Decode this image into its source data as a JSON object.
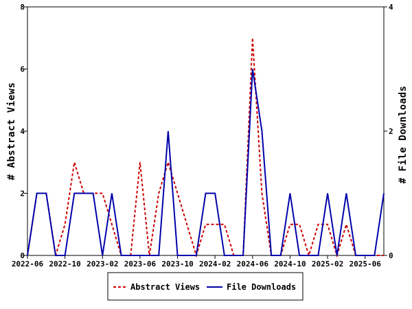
{
  "chart_data": {
    "type": "line",
    "x_ticks": [
      "2022-06",
      "2022-10",
      "2023-02",
      "2023-06",
      "2023-10",
      "2024-02",
      "2024-06",
      "2024-10",
      "2025-02",
      "2025-06"
    ],
    "x_start": "2022-06",
    "x_end": "2025-08",
    "left_axis": {
      "label": "# Abstract Views",
      "ylim": [
        0,
        8
      ],
      "ticks": [
        "0",
        "2",
        "4",
        "6",
        "8"
      ]
    },
    "right_axis": {
      "label": "# File Downloads",
      "ylim": [
        0,
        4
      ],
      "ticks": [
        "0",
        "2",
        "4"
      ]
    },
    "legend_position": "bottom-center",
    "series": [
      {
        "name": "Abstract Views",
        "axis": "left",
        "color": "#cc0000",
        "style": "dashed",
        "x": [
          "2022-06",
          "2022-07",
          "2022-08",
          "2022-09",
          "2022-10",
          "2022-11",
          "2022-12",
          "2023-01",
          "2023-02",
          "2023-03",
          "2023-04",
          "2023-05",
          "2023-06",
          "2023-07",
          "2023-08",
          "2023-09",
          "2023-10",
          "2023-11",
          "2023-12",
          "2024-01",
          "2024-02",
          "2024-03",
          "2024-04",
          "2024-05",
          "2024-06",
          "2024-07",
          "2024-08",
          "2024-09",
          "2024-10",
          "2024-11",
          "2024-12",
          "2025-01",
          "2025-02",
          "2025-03",
          "2025-04",
          "2025-05",
          "2025-06",
          "2025-07",
          "2025-08"
        ],
        "values": [
          0,
          2,
          2,
          0,
          1,
          3,
          2,
          2,
          2,
          1,
          0,
          0,
          3,
          0,
          2,
          3,
          2,
          1,
          0,
          1,
          1,
          1,
          0,
          0,
          7,
          2,
          0,
          0,
          1,
          1,
          0,
          1,
          1,
          0,
          1,
          0,
          0,
          0,
          0
        ]
      },
      {
        "name": "File Downloads",
        "axis": "right",
        "color": "#0000aa",
        "style": "solid",
        "x": [
          "2022-06",
          "2022-07",
          "2022-08",
          "2022-09",
          "2022-10",
          "2022-11",
          "2022-12",
          "2023-01",
          "2023-02",
          "2023-03",
          "2023-04",
          "2023-05",
          "2023-06",
          "2023-07",
          "2023-08",
          "2023-09",
          "2023-10",
          "2023-11",
          "2023-12",
          "2024-01",
          "2024-02",
          "2024-03",
          "2024-04",
          "2024-05",
          "2024-06",
          "2024-07",
          "2024-08",
          "2024-09",
          "2024-10",
          "2024-11",
          "2024-12",
          "2025-01",
          "2025-02",
          "2025-03",
          "2025-04",
          "2025-05",
          "2025-06",
          "2025-07",
          "2025-08"
        ],
        "values": [
          0,
          1,
          1,
          0,
          0,
          1,
          1,
          1,
          0,
          1,
          0,
          0,
          0,
          0,
          0,
          2,
          0,
          0,
          0,
          1,
          1,
          0,
          0,
          0,
          3,
          2,
          0,
          0,
          1,
          0,
          0,
          0,
          1,
          0,
          1,
          0,
          0,
          0,
          1
        ]
      }
    ]
  }
}
